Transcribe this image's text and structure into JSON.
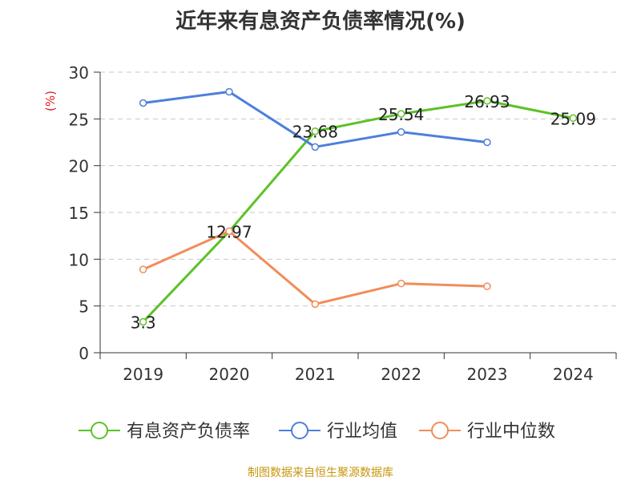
{
  "chart_data": {
    "type": "line",
    "title": "近年来有息资产负债率情况(%)",
    "ylabel": "(%)",
    "xlabel": "",
    "categories": [
      "2019",
      "2020",
      "2021",
      "2022",
      "2023",
      "2024"
    ],
    "ylim": [
      0,
      30
    ],
    "yticks": [
      0,
      5,
      10,
      15,
      20,
      25,
      30
    ],
    "grid": true,
    "legend_position": "bottom",
    "series": [
      {
        "name": "有息资产负债率",
        "color": "#5cc227",
        "values": [
          3.3,
          12.97,
          23.68,
          25.54,
          26.93,
          25.09
        ],
        "show_labels": true
      },
      {
        "name": "行业均值",
        "color": "#4d7fdb",
        "values": [
          26.7,
          27.9,
          22.0,
          23.6,
          22.5,
          null
        ],
        "show_labels": false
      },
      {
        "name": "行业中位数",
        "color": "#f28c5a",
        "values": [
          8.9,
          13.0,
          5.2,
          7.4,
          7.1,
          null
        ],
        "show_labels": false
      }
    ]
  },
  "source": "制图数据来自恒生聚源数据库"
}
